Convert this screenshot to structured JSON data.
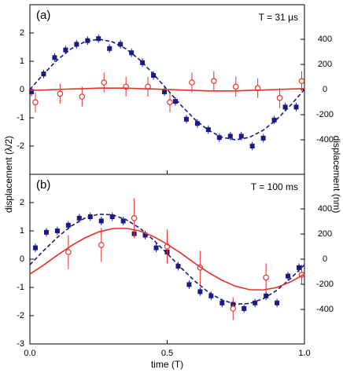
{
  "chart_data": [
    {
      "type": "scatter",
      "annotation": "(a)",
      "note": "T = 31 μs",
      "ylabel": "displacement (λ/2)",
      "y2label": "displacement (nm)",
      "ylim": [
        -3,
        3
      ],
      "yticks": [
        -2,
        -1,
        0,
        1,
        2
      ],
      "y2lim": [
        -675,
        675
      ],
      "y2ticks": [
        -400,
        -200,
        0,
        200,
        400
      ],
      "series": [
        {
          "color": "#1a1a80",
          "marker": "square",
          "x": [
            0.006,
            0.05,
            0.09,
            0.13,
            0.17,
            0.21,
            0.25,
            0.29,
            0.33,
            0.37,
            0.41,
            0.45,
            0.49,
            0.53,
            0.57,
            0.61,
            0.65,
            0.69,
            0.73,
            0.77,
            0.81,
            0.85,
            0.89,
            0.93,
            0.97
          ],
          "values": [
            -0.08,
            0.55,
            1.13,
            1.4,
            1.6,
            1.73,
            1.8,
            1.45,
            1.6,
            1.3,
            0.95,
            0.5,
            -0.08,
            -0.42,
            -1.05,
            -1.2,
            -1.42,
            -1.7,
            -1.65,
            -1.65,
            -2.0,
            -1.72,
            -1.08,
            -0.62,
            -0.62
          ],
          "errors": [
            0.15,
            0.15,
            0.15,
            0.15,
            0.15,
            0.15,
            0.15,
            0.15,
            0.15,
            0.15,
            0.15,
            0.15,
            0.15,
            0.15,
            0.15,
            0.15,
            0.15,
            0.15,
            0.15,
            0.15,
            0.15,
            0.15,
            0.15,
            0.15,
            0.15
          ]
        },
        {
          "color": "#e8302a",
          "marker": "circle",
          "x": [
            0.02,
            0.11,
            0.19,
            0.27,
            0.35,
            0.43,
            0.51,
            0.59,
            0.67,
            0.75,
            0.83,
            0.91,
            0.99
          ],
          "values": [
            -0.45,
            -0.15,
            -0.25,
            0.25,
            0.1,
            0.1,
            -0.45,
            0.25,
            0.3,
            0.1,
            0.05,
            -0.3,
            0.3
          ],
          "errors": [
            0.35,
            0.35,
            0.35,
            0.35,
            0.35,
            0.35,
            0.35,
            0.35,
            0.35,
            0.35,
            0.35,
            0.35,
            0.35
          ]
        },
        {
          "color": "#1a1a80",
          "line": "dashed",
          "x": [
            0,
            0.05,
            0.1,
            0.15,
            0.2,
            0.25,
            0.3,
            0.35,
            0.4,
            0.45,
            0.5,
            0.55,
            0.6,
            0.65,
            0.7,
            0.75,
            0.8,
            0.85,
            0.9,
            0.95,
            1
          ],
          "values": [
            0,
            0.55,
            1.05,
            1.44,
            1.69,
            1.78,
            1.69,
            1.44,
            1.05,
            0.55,
            0,
            -0.55,
            -1.05,
            -1.44,
            -1.69,
            -1.78,
            -1.69,
            -1.44,
            -1.05,
            -0.55,
            0
          ]
        },
        {
          "color": "#e8302a",
          "line": "solid",
          "x": [
            0,
            0.05,
            0.1,
            0.15,
            0.2,
            0.25,
            0.3,
            0.35,
            0.4,
            0.45,
            0.5,
            0.55,
            0.6,
            0.65,
            0.7,
            0.75,
            0.8,
            0.85,
            0.9,
            0.95,
            1
          ],
          "values": [
            -0.03,
            -0.02,
            0,
            0.02,
            0.03,
            0.05,
            0.05,
            0.05,
            0.03,
            0.02,
            0,
            -0.02,
            -0.03,
            -0.05,
            -0.05,
            -0.05,
            -0.03,
            -0.02,
            0,
            0.02,
            0.03
          ]
        }
      ]
    },
    {
      "type": "scatter",
      "annotation": "(b)",
      "note": "T = 100 ms",
      "xlabel": "time (T)",
      "xlim": [
        0,
        1
      ],
      "xticks": [
        {
          "value": 0,
          "label": "0.0"
        },
        0.5,
        {
          "value": 1,
          "label": "1.0"
        }
      ],
      "ylim": [
        -3,
        3
      ],
      "yticks": [
        -3,
        -2,
        -1,
        0,
        1,
        2
      ],
      "y2lim": [
        -675,
        675
      ],
      "y2ticks": [
        -400,
        -200,
        0,
        200,
        400
      ],
      "series": [
        {
          "color": "#1a1a80",
          "marker": "square",
          "x": [
            0.02,
            0.06,
            0.1,
            0.14,
            0.18,
            0.22,
            0.26,
            0.3,
            0.34,
            0.38,
            0.42,
            0.46,
            0.5,
            0.54,
            0.58,
            0.62,
            0.66,
            0.7,
            0.74,
            0.78,
            0.82,
            0.86,
            0.9,
            0.94,
            0.98
          ],
          "values": [
            0.4,
            0.95,
            1.0,
            1.2,
            1.45,
            1.5,
            1.35,
            1.5,
            1.35,
            0.9,
            0.85,
            0.4,
            0.25,
            -0.25,
            -0.9,
            -1.15,
            -1.3,
            -1.55,
            -1.6,
            -1.75,
            -1.55,
            -1.3,
            -1.55,
            -0.6,
            -0.3
          ],
          "errors": [
            0.15,
            0.15,
            0.15,
            0.15,
            0.15,
            0.15,
            0.15,
            0.15,
            0.15,
            0.15,
            0.15,
            0.15,
            0.15,
            0.15,
            0.15,
            0.15,
            0.15,
            0.15,
            0.15,
            0.15,
            0.15,
            0.15,
            0.15,
            0.15,
            0.15
          ]
        },
        {
          "color": "#e8302a",
          "marker": "circle",
          "x": [
            0.14,
            0.26,
            0.38,
            0.5,
            0.62,
            0.74,
            0.86,
            0.99
          ],
          "values": [
            0.25,
            0.5,
            1.45,
            0.45,
            -0.3,
            -1.75,
            -0.65,
            -0.55
          ],
          "errors": [
            0.6,
            0.6,
            0.7,
            0.6,
            0.6,
            0.4,
            0.5,
            0.35
          ]
        },
        {
          "color": "#1a1a80",
          "line": "dashed",
          "x": [
            0,
            0.05,
            0.1,
            0.15,
            0.2,
            0.25,
            0.3,
            0.35,
            0.4,
            0.45,
            0.5,
            0.55,
            0.6,
            0.65,
            0.7,
            0.75,
            0.8,
            0.85,
            0.9,
            0.95,
            1
          ],
          "values": [
            -0.2,
            0.3,
            0.77,
            1.17,
            1.45,
            1.59,
            1.57,
            1.4,
            1.1,
            0.68,
            0.2,
            -0.3,
            -0.77,
            -1.17,
            -1.45,
            -1.59,
            -1.57,
            -1.4,
            -1.1,
            -0.68,
            -0.2
          ]
        },
        {
          "color": "#e8302a",
          "line": "solid",
          "x": [
            0,
            0.05,
            0.1,
            0.15,
            0.2,
            0.25,
            0.3,
            0.35,
            0.4,
            0.45,
            0.5,
            0.55,
            0.6,
            0.65,
            0.7,
            0.75,
            0.8,
            0.85,
            0.9,
            0.95,
            1
          ],
          "values": [
            -0.53,
            -0.21,
            0.14,
            0.47,
            0.75,
            0.96,
            1.08,
            1.09,
            1.0,
            0.8,
            0.53,
            0.21,
            -0.14,
            -0.47,
            -0.75,
            -0.96,
            -1.08,
            -1.09,
            -1.0,
            -0.8,
            -0.53
          ]
        }
      ]
    }
  ]
}
